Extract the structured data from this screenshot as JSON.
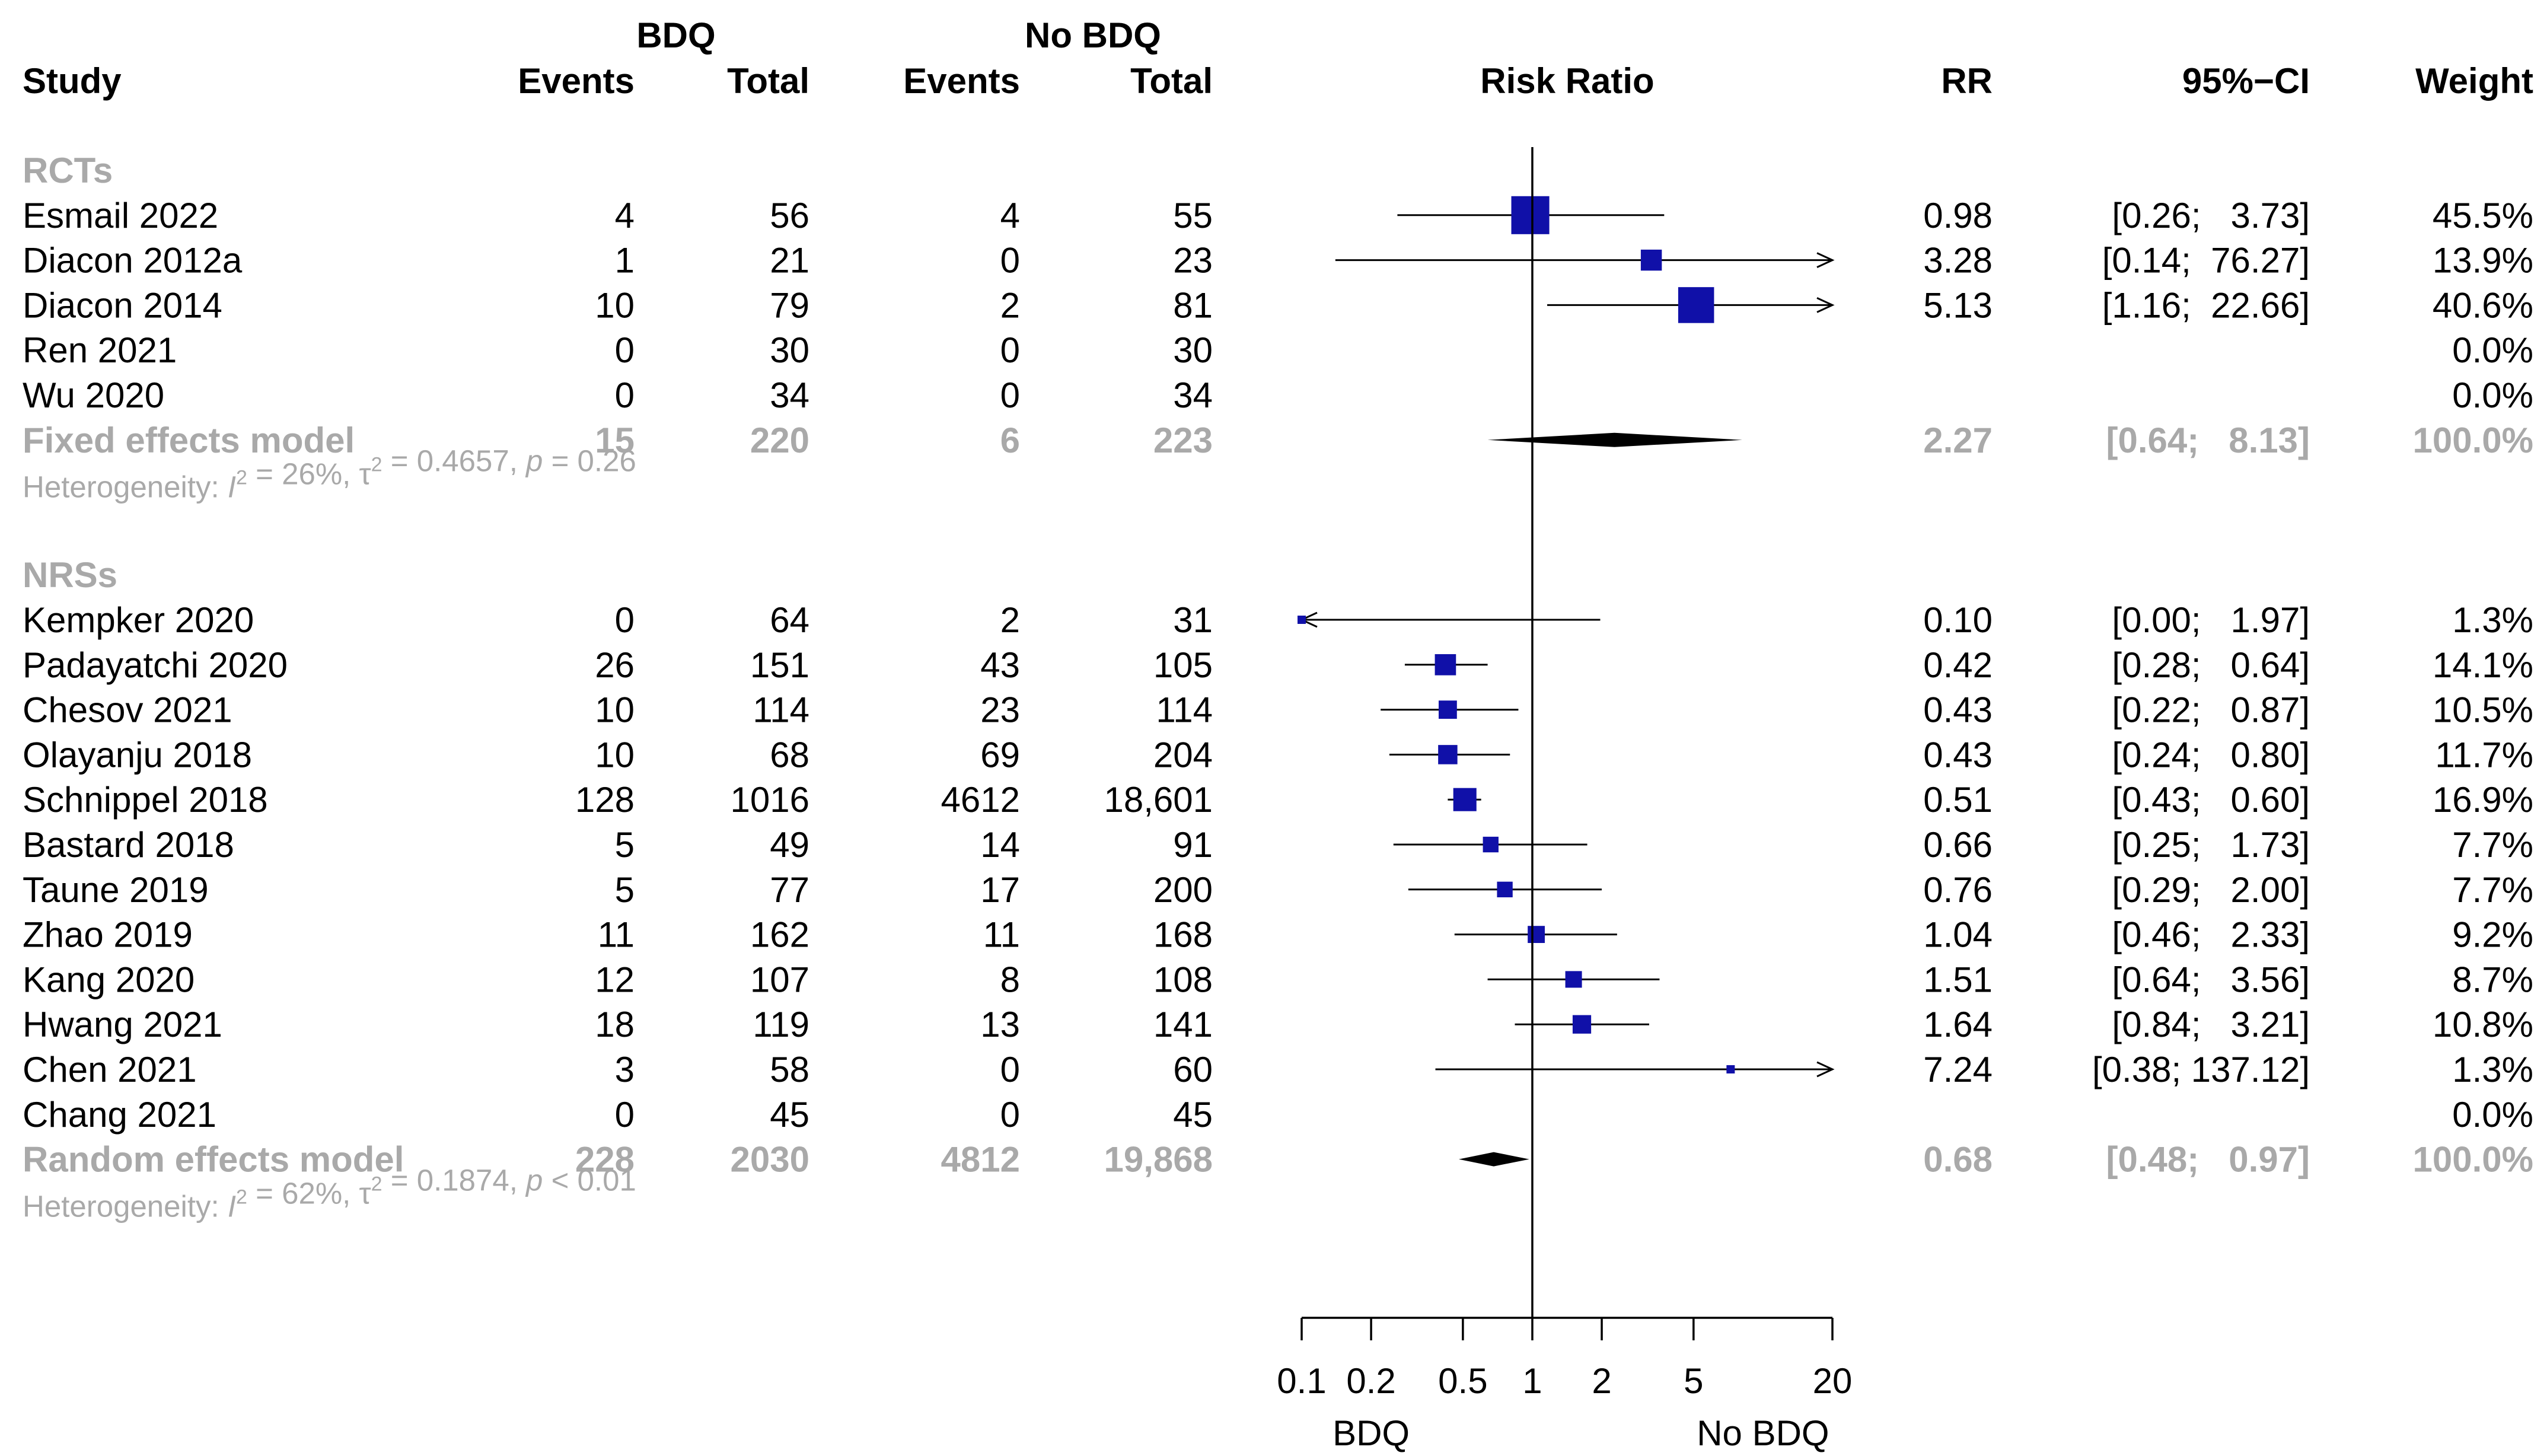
{
  "chart_data": {
    "type": "forest",
    "title": "",
    "effect_label": "Risk Ratio",
    "scale": "log",
    "xlim": [
      0.1,
      20
    ],
    "headers": {
      "group1": "BDQ",
      "group2": "No BDQ",
      "study": "Study",
      "events": "Events",
      "total": "Total",
      "events2": "Events",
      "total2": "Total",
      "plot": "Risk Ratio",
      "rr": "RR",
      "ci": "95%−CI",
      "weight": "Weight"
    },
    "x_ticks": [
      {
        "value": 0.1,
        "label": "0.1"
      },
      {
        "value": 0.2,
        "label": "0.2"
      },
      {
        "value": 0.5,
        "label": "0.5"
      },
      {
        "value": 1,
        "label": "1"
      },
      {
        "value": 2,
        "label": "2"
      },
      {
        "value": 5,
        "label": "5"
      },
      {
        "value": 20,
        "label": "20"
      }
    ],
    "favours_left": "BDQ",
    "favours_right": "No BDQ",
    "subgroups": [
      {
        "label": "RCTs",
        "studies": [
          {
            "study": "Esmail   2022",
            "ev1": "4",
            "n1": "56",
            "ev2": "4",
            "n2": "55",
            "rr": 0.98,
            "lo": 0.26,
            "hi": 3.73,
            "rr_text": "0.98",
            "ci_text": "[0.26;   3.73]",
            "weight_text": "45.5%",
            "w": 45.5
          },
          {
            "study": "Diacon   2012a",
            "ev1": "1",
            "n1": "21",
            "ev2": "0",
            "n2": "23",
            "rr": 3.28,
            "lo": 0.14,
            "hi": 76.27,
            "rr_text": "3.28",
            "ci_text": "[0.14;  76.27]",
            "weight_text": "13.9%",
            "w": 13.9
          },
          {
            "study": "Diacon   2014",
            "ev1": "10",
            "n1": "79",
            "ev2": "2",
            "n2": "81",
            "rr": 5.13,
            "lo": 1.16,
            "hi": 22.66,
            "rr_text": "5.13",
            "ci_text": "[1.16;  22.66]",
            "weight_text": "40.6%",
            "w": 40.6
          },
          {
            "study": "Ren   2021",
            "ev1": "0",
            "n1": "30",
            "ev2": "0",
            "n2": "30",
            "rr": null,
            "lo": null,
            "hi": null,
            "rr_text": "",
            "ci_text": "",
            "weight_text": "0.0%",
            "w": 0
          },
          {
            "study": "Wu   2020",
            "ev1": "0",
            "n1": "34",
            "ev2": "0",
            "n2": "34",
            "rr": null,
            "lo": null,
            "hi": null,
            "rr_text": "",
            "ci_text": "",
            "weight_text": "0.0%",
            "w": 0
          }
        ],
        "pooled": {
          "label": "Fixed effects model",
          "ev1": "15",
          "n1": "220",
          "ev2": "6",
          "n2": "223",
          "rr": 2.27,
          "lo": 0.64,
          "hi": 8.13,
          "rr_text": "2.27",
          "ci_text": "[0.64;   8.13]",
          "weight_text": "100.0%"
        },
        "heterogeneity": {
          "prefix": "Heterogeneity: ",
          "i2_symbol": "I",
          "i2_value": " = 26%, ",
          "tau_symbol": "τ",
          "tau_value": " = 0.4657, ",
          "p_symbol": "p",
          "p_value": " = 0.26"
        }
      },
      {
        "label": "NRSs",
        "studies": [
          {
            "study": "Kempker   2020",
            "ev1": "0",
            "n1": "64",
            "ev2": "2",
            "n2": "31",
            "rr": 0.1,
            "lo": 0.005,
            "hi": 1.97,
            "rr_text": "0.10",
            "ci_text": "[0.00;   1.97]",
            "weight_text": "1.3%",
            "w": 1.3
          },
          {
            "study": "Padayatchi   2020",
            "ev1": "26",
            "n1": "151",
            "ev2": "43",
            "n2": "105",
            "rr": 0.42,
            "lo": 0.28,
            "hi": 0.64,
            "rr_text": "0.42",
            "ci_text": "[0.28;   0.64]",
            "weight_text": "14.1%",
            "w": 14.1
          },
          {
            "study": "Chesov   2021",
            "ev1": "10",
            "n1": "114",
            "ev2": "23",
            "n2": "114",
            "rr": 0.43,
            "lo": 0.22,
            "hi": 0.87,
            "rr_text": "0.43",
            "ci_text": "[0.22;   0.87]",
            "weight_text": "10.5%",
            "w": 10.5
          },
          {
            "study": "Olayanju   2018",
            "ev1": "10",
            "n1": "68",
            "ev2": "69",
            "n2": "204",
            "rr": 0.43,
            "lo": 0.24,
            "hi": 0.8,
            "rr_text": "0.43",
            "ci_text": "[0.24;   0.80]",
            "weight_text": "11.7%",
            "w": 11.7
          },
          {
            "study": "Schnippel   2018",
            "ev1": "128",
            "n1": "1016",
            "ev2": "4612",
            "n2": "18,601",
            "rr": 0.51,
            "lo": 0.43,
            "hi": 0.6,
            "rr_text": "0.51",
            "ci_text": "[0.43;   0.60]",
            "weight_text": "16.9%",
            "w": 16.9
          },
          {
            "study": "Bastard   2018",
            "ev1": "5",
            "n1": "49",
            "ev2": "14",
            "n2": "91",
            "rr": 0.66,
            "lo": 0.25,
            "hi": 1.73,
            "rr_text": "0.66",
            "ci_text": "[0.25;   1.73]",
            "weight_text": "7.7%",
            "w": 7.7
          },
          {
            "study": "Taune   2019",
            "ev1": "5",
            "n1": "77",
            "ev2": "17",
            "n2": "200",
            "rr": 0.76,
            "lo": 0.29,
            "hi": 2.0,
            "rr_text": "0.76",
            "ci_text": "[0.29;   2.00]",
            "weight_text": "7.7%",
            "w": 7.7
          },
          {
            "study": "Zhao   2019",
            "ev1": "11",
            "n1": "162",
            "ev2": "11",
            "n2": "168",
            "rr": 1.04,
            "lo": 0.46,
            "hi": 2.33,
            "rr_text": "1.04",
            "ci_text": "[0.46;   2.33]",
            "weight_text": "9.2%",
            "w": 9.2
          },
          {
            "study": "Kang   2020",
            "ev1": "12",
            "n1": "107",
            "ev2": "8",
            "n2": "108",
            "rr": 1.51,
            "lo": 0.64,
            "hi": 3.56,
            "rr_text": "1.51",
            "ci_text": "[0.64;   3.56]",
            "weight_text": "8.7%",
            "w": 8.7
          },
          {
            "study": "Hwang   2021",
            "ev1": "18",
            "n1": "119",
            "ev2": "13",
            "n2": "141",
            "rr": 1.64,
            "lo": 0.84,
            "hi": 3.21,
            "rr_text": "1.64",
            "ci_text": "[0.84;   3.21]",
            "weight_text": "10.8%",
            "w": 10.8
          },
          {
            "study": "Chen   2021",
            "ev1": "3",
            "n1": "58",
            "ev2": "0",
            "n2": "60",
            "rr": 7.24,
            "lo": 0.38,
            "hi": 137.12,
            "rr_text": "7.24",
            "ci_text": "[0.38; 137.12]",
            "weight_text": "1.3%",
            "w": 1.3
          },
          {
            "study": "Chang   2021",
            "ev1": "0",
            "n1": "45",
            "ev2": "0",
            "n2": "45",
            "rr": null,
            "lo": null,
            "hi": null,
            "rr_text": "",
            "ci_text": "",
            "weight_text": "0.0%",
            "w": 0
          }
        ],
        "pooled": {
          "label": "Random effects model",
          "ev1": "228",
          "n1": "2030",
          "ev2": "4812",
          "n2": "19,868",
          "rr": 0.68,
          "lo": 0.48,
          "hi": 0.97,
          "rr_text": "0.68",
          "ci_text": "[0.48;   0.97]",
          "weight_text": "100.0%"
        },
        "heterogeneity": {
          "prefix": "Heterogeneity: ",
          "i2_symbol": "I",
          "i2_value": " = 62%, ",
          "tau_symbol": "τ",
          "tau_value": " = 0.1874, ",
          "p_symbol": "p",
          "p_value": " < 0.01"
        }
      }
    ]
  },
  "colors": {
    "square": "#1010a8",
    "diamond": "#000000",
    "grey_text": "#a9a9a9",
    "text": "#000000"
  }
}
